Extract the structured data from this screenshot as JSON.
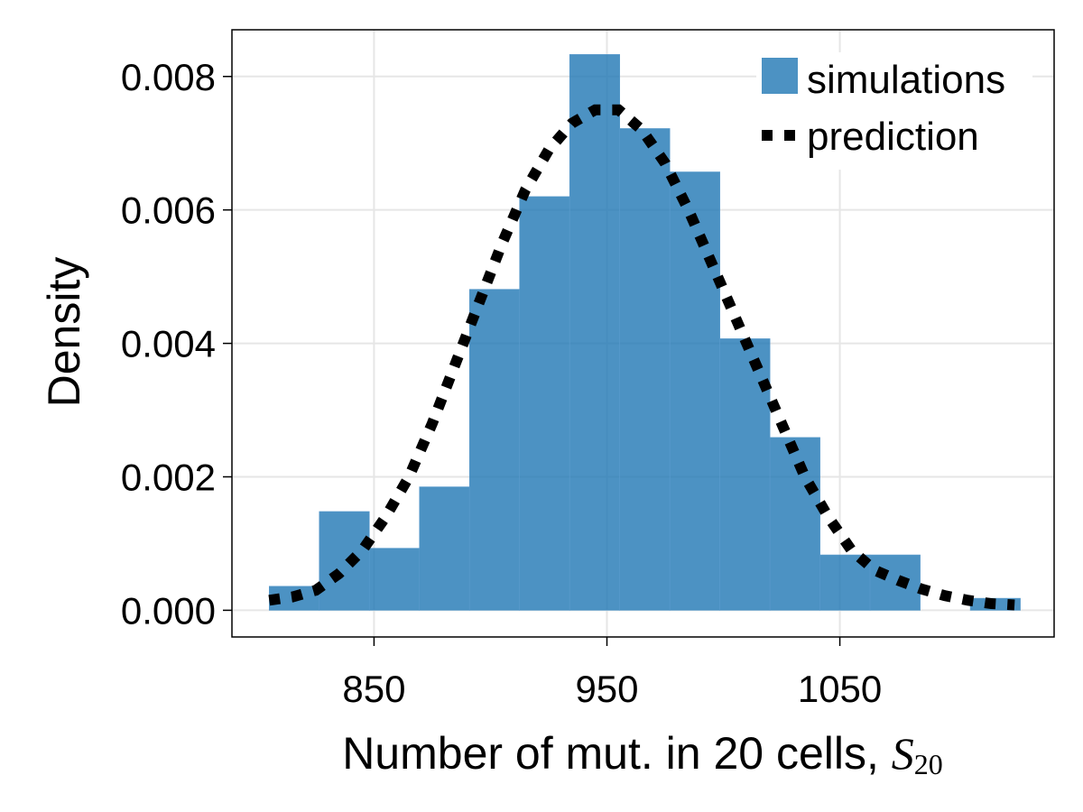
{
  "colors": {
    "bar_fill": "#1f77b4",
    "bar_opacity": 0.8,
    "prediction_line": "#000000",
    "grid": "#e6e6e6",
    "frame": "#000000"
  },
  "chart_data": {
    "type": "bar",
    "title": "",
    "xlabel": "Number of mut. in 20 cells, ",
    "xlabel_math": "S",
    "xlabel_math_sub": "20",
    "ylabel": "Density",
    "xlim": [
      789,
      1142
    ],
    "ylim": [
      -0.0004,
      0.0087
    ],
    "x_ticks": [
      850,
      950,
      1050
    ],
    "x_tick_labels": [
      "850",
      "950",
      "1050"
    ],
    "y_ticks": [
      0.0,
      0.002,
      0.004,
      0.006,
      0.008
    ],
    "y_tick_labels": [
      "0.000",
      "0.002",
      "0.004",
      "0.006",
      "0.008"
    ],
    "grid": true,
    "legend_position": "top-right",
    "bin_edges": [
      805,
      826.5,
      848,
      869.5,
      891,
      912.5,
      934,
      955.5,
      977,
      998.5,
      1020,
      1041.5,
      1063,
      1084.5,
      1106,
      1127.5
    ],
    "series": [
      {
        "name": "simulations",
        "kind": "histogram",
        "values": [
          0.00036,
          0.00148,
          0.00093,
          0.00185,
          0.00481,
          0.0062,
          0.00833,
          0.00722,
          0.00657,
          0.00407,
          0.00259,
          0.00083,
          0.00083,
          0.0,
          0.00018
        ]
      },
      {
        "name": "prediction",
        "kind": "dashed-line",
        "x": [
          805,
          815,
          825,
          835,
          845,
          855,
          865,
          875,
          885,
          895,
          905,
          915,
          925,
          935,
          945,
          955,
          965,
          975,
          985,
          995,
          1005,
          1015,
          1025,
          1035,
          1045,
          1055,
          1065,
          1075,
          1085,
          1095,
          1105,
          1115,
          1125
        ],
        "y": [
          0.00015,
          0.0002,
          0.0003,
          0.00055,
          0.0009,
          0.0014,
          0.002,
          0.0028,
          0.0037,
          0.0046,
          0.0055,
          0.0063,
          0.0069,
          0.0073,
          0.0075,
          0.0075,
          0.0072,
          0.0067,
          0.006,
          0.0052,
          0.0044,
          0.0036,
          0.0028,
          0.002,
          0.0014,
          0.0009,
          0.0006,
          0.00045,
          0.00032,
          0.00022,
          0.00015,
          0.0001,
          8e-05
        ]
      }
    ]
  }
}
